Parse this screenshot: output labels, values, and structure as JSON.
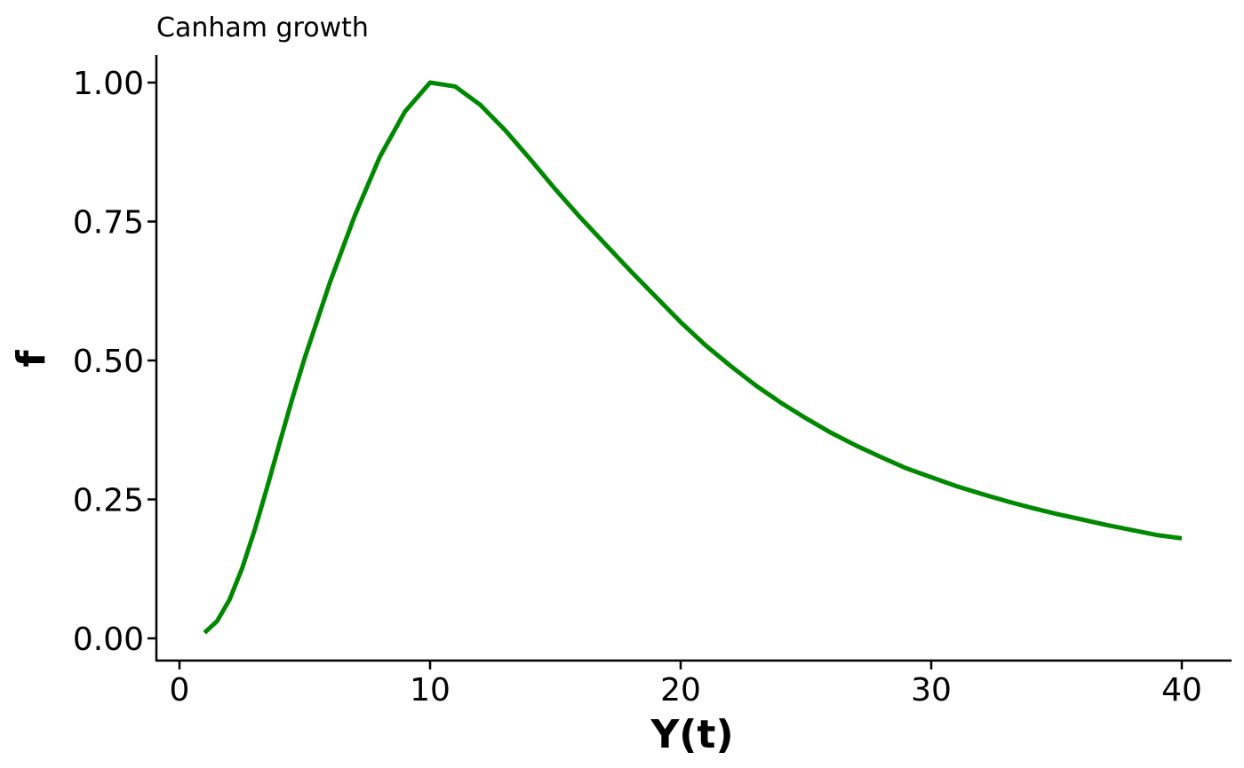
{
  "chart_data": {
    "type": "line",
    "title": "Canham growth",
    "xlabel": "Y(t)",
    "ylabel": "f",
    "xlim": [
      -1,
      42
    ],
    "ylim": [
      -0.04,
      1.05
    ],
    "x_ticks": [
      0,
      10,
      20,
      30,
      40
    ],
    "x_tick_labels": [
      "0",
      "10",
      "20",
      "30",
      "40"
    ],
    "y_ticks": [
      0,
      0.25,
      0.5,
      0.75,
      1
    ],
    "y_tick_labels": [
      "0.00",
      "0.25",
      "0.50",
      "0.75",
      "1.00"
    ],
    "grid": false,
    "legend": "none",
    "series": [
      {
        "color": "#008800",
        "x": [
          1,
          1.5,
          2,
          2.5,
          3,
          3.5,
          4,
          4.5,
          5,
          6,
          7,
          8,
          9,
          10,
          11,
          12,
          13,
          14,
          15,
          16,
          17,
          18,
          19,
          20,
          21,
          22,
          23,
          24,
          25,
          26,
          27,
          28,
          29,
          30,
          31,
          32,
          33,
          34,
          35,
          36,
          37,
          38,
          39,
          40
        ],
        "y": [
          0.01,
          0.031,
          0.07,
          0.126,
          0.195,
          0.272,
          0.352,
          0.431,
          0.505,
          0.64,
          0.761,
          0.867,
          0.948,
          1.0,
          0.993,
          0.96,
          0.914,
          0.862,
          0.808,
          0.757,
          0.709,
          0.661,
          0.615,
          0.569,
          0.527,
          0.49,
          0.455,
          0.424,
          0.396,
          0.37,
          0.347,
          0.326,
          0.306,
          0.29,
          0.274,
          0.26,
          0.247,
          0.235,
          0.224,
          0.214,
          0.204,
          0.195,
          0.186,
          0.18
        ]
      }
    ]
  }
}
